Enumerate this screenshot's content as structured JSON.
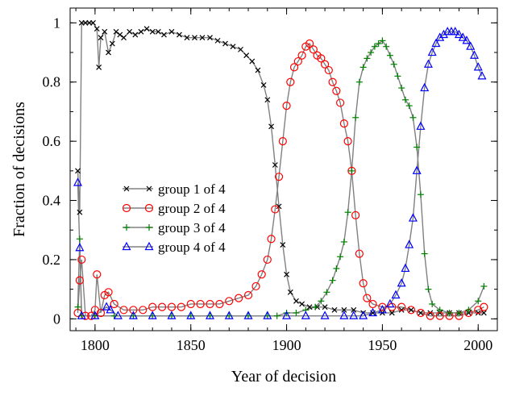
{
  "chart_data": {
    "type": "line",
    "xlabel": "Year of decision",
    "ylabel": "Fraction of decisions",
    "xlim": [
      1787,
      2010
    ],
    "ylim": [
      -0.04,
      1.05
    ],
    "x_ticks": [
      1800,
      1850,
      1900,
      1950,
      2000
    ],
    "y_ticks": [
      0,
      0.2,
      0.4,
      0.6,
      0.8,
      1
    ],
    "x_tick_labels": [
      "1800",
      "1850",
      "1900",
      "1950",
      "2000"
    ],
    "y_tick_labels": [
      "0",
      "0.2",
      "0.4",
      "0.6",
      "0.8",
      "1"
    ],
    "grid": false,
    "legend_position": "center-left",
    "series": [
      {
        "name": "group 1 of 4",
        "color": "#000000",
        "marker": "x",
        "points": [
          [
            1791,
            0.5
          ],
          [
            1792,
            0.36
          ],
          [
            1793,
            1
          ],
          [
            1795,
            1
          ],
          [
            1797,
            1
          ],
          [
            1799,
            1
          ],
          [
            1801,
            0.98
          ],
          [
            1802,
            0.85
          ],
          [
            1803,
            0.95
          ],
          [
            1805,
            0.97
          ],
          [
            1807,
            0.9
          ],
          [
            1809,
            0.93
          ],
          [
            1811,
            0.97
          ],
          [
            1813,
            0.96
          ],
          [
            1815,
            0.95
          ],
          [
            1818,
            0.97
          ],
          [
            1821,
            0.96
          ],
          [
            1824,
            0.97
          ],
          [
            1827,
            0.98
          ],
          [
            1830,
            0.97
          ],
          [
            1833,
            0.97
          ],
          [
            1836,
            0.96
          ],
          [
            1840,
            0.97
          ],
          [
            1844,
            0.96
          ],
          [
            1848,
            0.95
          ],
          [
            1852,
            0.95
          ],
          [
            1856,
            0.95
          ],
          [
            1860,
            0.95
          ],
          [
            1864,
            0.94
          ],
          [
            1868,
            0.93
          ],
          [
            1872,
            0.92
          ],
          [
            1876,
            0.91
          ],
          [
            1879,
            0.89
          ],
          [
            1882,
            0.87
          ],
          [
            1885,
            0.84
          ],
          [
            1888,
            0.79
          ],
          [
            1890,
            0.74
          ],
          [
            1892,
            0.65
          ],
          [
            1894,
            0.52
          ],
          [
            1896,
            0.38
          ],
          [
            1898,
            0.25
          ],
          [
            1900,
            0.15
          ],
          [
            1902,
            0.09
          ],
          [
            1905,
            0.06
          ],
          [
            1908,
            0.05
          ],
          [
            1912,
            0.04
          ],
          [
            1916,
            0.04
          ],
          [
            1920,
            0.04
          ],
          [
            1925,
            0.03
          ],
          [
            1930,
            0.03
          ],
          [
            1935,
            0.03
          ],
          [
            1940,
            0.02
          ],
          [
            1945,
            0.02
          ],
          [
            1950,
            0.02
          ],
          [
            1955,
            0.02
          ],
          [
            1960,
            0.03
          ],
          [
            1965,
            0.03
          ],
          [
            1970,
            0.02
          ],
          [
            1975,
            0.02
          ],
          [
            1980,
            0.02
          ],
          [
            1985,
            0.02
          ],
          [
            1990,
            0.02
          ],
          [
            1995,
            0.02
          ],
          [
            2000,
            0.02
          ],
          [
            2003,
            0.02
          ]
        ]
      },
      {
        "name": "group 2 of 4",
        "color": "#ff0000",
        "marker": "circle",
        "points": [
          [
            1791,
            0.02
          ],
          [
            1792,
            0.13
          ],
          [
            1793,
            0.2
          ],
          [
            1795,
            0.01
          ],
          [
            1798,
            0.01
          ],
          [
            1800,
            0.03
          ],
          [
            1801,
            0.15
          ],
          [
            1803,
            0.02
          ],
          [
            1805,
            0.08
          ],
          [
            1807,
            0.09
          ],
          [
            1810,
            0.05
          ],
          [
            1815,
            0.03
          ],
          [
            1820,
            0.03
          ],
          [
            1825,
            0.03
          ],
          [
            1830,
            0.04
          ],
          [
            1835,
            0.04
          ],
          [
            1840,
            0.04
          ],
          [
            1845,
            0.04
          ],
          [
            1850,
            0.05
          ],
          [
            1855,
            0.05
          ],
          [
            1860,
            0.05
          ],
          [
            1865,
            0.05
          ],
          [
            1870,
            0.06
          ],
          [
            1875,
            0.07
          ],
          [
            1880,
            0.08
          ],
          [
            1884,
            0.11
          ],
          [
            1887,
            0.15
          ],
          [
            1890,
            0.2
          ],
          [
            1892,
            0.27
          ],
          [
            1894,
            0.37
          ],
          [
            1896,
            0.48
          ],
          [
            1898,
            0.6
          ],
          [
            1900,
            0.72
          ],
          [
            1902,
            0.8
          ],
          [
            1904,
            0.85
          ],
          [
            1906,
            0.87
          ],
          [
            1908,
            0.89
          ],
          [
            1910,
            0.92
          ],
          [
            1912,
            0.93
          ],
          [
            1914,
            0.91
          ],
          [
            1916,
            0.89
          ],
          [
            1918,
            0.88
          ],
          [
            1920,
            0.86
          ],
          [
            1922,
            0.84
          ],
          [
            1924,
            0.8
          ],
          [
            1926,
            0.77
          ],
          [
            1928,
            0.73
          ],
          [
            1930,
            0.66
          ],
          [
            1932,
            0.6
          ],
          [
            1934,
            0.5
          ],
          [
            1936,
            0.35
          ],
          [
            1938,
            0.22
          ],
          [
            1940,
            0.12
          ],
          [
            1942,
            0.07
          ],
          [
            1945,
            0.05
          ],
          [
            1950,
            0.04
          ],
          [
            1955,
            0.04
          ],
          [
            1960,
            0.04
          ],
          [
            1965,
            0.03
          ],
          [
            1970,
            0.02
          ],
          [
            1975,
            0.01
          ],
          [
            1980,
            0.01
          ],
          [
            1985,
            0.01
          ],
          [
            1990,
            0.01
          ],
          [
            1995,
            0.02
          ],
          [
            2000,
            0.03
          ],
          [
            2003,
            0.04
          ]
        ]
      },
      {
        "name": "group 3 of 4",
        "color": "#008000",
        "marker": "plus",
        "points": [
          [
            1791,
            0.04
          ],
          [
            1792,
            0.27
          ],
          [
            1793,
            0.01
          ],
          [
            1800,
            0.01
          ],
          [
            1810,
            0.01
          ],
          [
            1820,
            0.01
          ],
          [
            1830,
            0.01
          ],
          [
            1840,
            0.01
          ],
          [
            1850,
            0.01
          ],
          [
            1860,
            0.01
          ],
          [
            1870,
            0.01
          ],
          [
            1880,
            0.01
          ],
          [
            1890,
            0.01
          ],
          [
            1895,
            0.01
          ],
          [
            1900,
            0.02
          ],
          [
            1905,
            0.02
          ],
          [
            1910,
            0.03
          ],
          [
            1915,
            0.04
          ],
          [
            1918,
            0.06
          ],
          [
            1921,
            0.09
          ],
          [
            1924,
            0.13
          ],
          [
            1926,
            0.17
          ],
          [
            1928,
            0.21
          ],
          [
            1930,
            0.26
          ],
          [
            1932,
            0.36
          ],
          [
            1934,
            0.5
          ],
          [
            1936,
            0.68
          ],
          [
            1938,
            0.8
          ],
          [
            1940,
            0.85
          ],
          [
            1942,
            0.88
          ],
          [
            1944,
            0.9
          ],
          [
            1946,
            0.92
          ],
          [
            1948,
            0.93
          ],
          [
            1950,
            0.94
          ],
          [
            1952,
            0.92
          ],
          [
            1954,
            0.89
          ],
          [
            1956,
            0.86
          ],
          [
            1958,
            0.82
          ],
          [
            1960,
            0.78
          ],
          [
            1962,
            0.74
          ],
          [
            1964,
            0.72
          ],
          [
            1966,
            0.68
          ],
          [
            1968,
            0.58
          ],
          [
            1970,
            0.42
          ],
          [
            1972,
            0.22
          ],
          [
            1974,
            0.1
          ],
          [
            1976,
            0.05
          ],
          [
            1980,
            0.03
          ],
          [
            1985,
            0.02
          ],
          [
            1990,
            0.02
          ],
          [
            1995,
            0.03
          ],
          [
            2000,
            0.06
          ],
          [
            2003,
            0.11
          ]
        ]
      },
      {
        "name": "group 4 of 4",
        "color": "#0000ff",
        "marker": "triangle",
        "points": [
          [
            1791,
            0.46
          ],
          [
            1792,
            0.24
          ],
          [
            1793,
            0.01
          ],
          [
            1800,
            0.01
          ],
          [
            1806,
            0.04
          ],
          [
            1808,
            0.03
          ],
          [
            1812,
            0.01
          ],
          [
            1820,
            0.01
          ],
          [
            1830,
            0.01
          ],
          [
            1840,
            0.01
          ],
          [
            1850,
            0.01
          ],
          [
            1860,
            0.01
          ],
          [
            1870,
            0.01
          ],
          [
            1880,
            0.01
          ],
          [
            1890,
            0.01
          ],
          [
            1900,
            0.01
          ],
          [
            1910,
            0.01
          ],
          [
            1920,
            0.01
          ],
          [
            1930,
            0.01
          ],
          [
            1935,
            0.01
          ],
          [
            1940,
            0.01
          ],
          [
            1945,
            0.02
          ],
          [
            1950,
            0.03
          ],
          [
            1954,
            0.05
          ],
          [
            1957,
            0.08
          ],
          [
            1960,
            0.12
          ],
          [
            1962,
            0.17
          ],
          [
            1964,
            0.25
          ],
          [
            1966,
            0.34
          ],
          [
            1968,
            0.5
          ],
          [
            1970,
            0.65
          ],
          [
            1972,
            0.78
          ],
          [
            1974,
            0.86
          ],
          [
            1976,
            0.9
          ],
          [
            1978,
            0.93
          ],
          [
            1980,
            0.95
          ],
          [
            1982,
            0.96
          ],
          [
            1984,
            0.97
          ],
          [
            1986,
            0.97
          ],
          [
            1988,
            0.97
          ],
          [
            1990,
            0.96
          ],
          [
            1992,
            0.95
          ],
          [
            1994,
            0.94
          ],
          [
            1996,
            0.92
          ],
          [
            1998,
            0.89
          ],
          [
            2000,
            0.85
          ],
          [
            2002,
            0.82
          ]
        ]
      }
    ]
  }
}
